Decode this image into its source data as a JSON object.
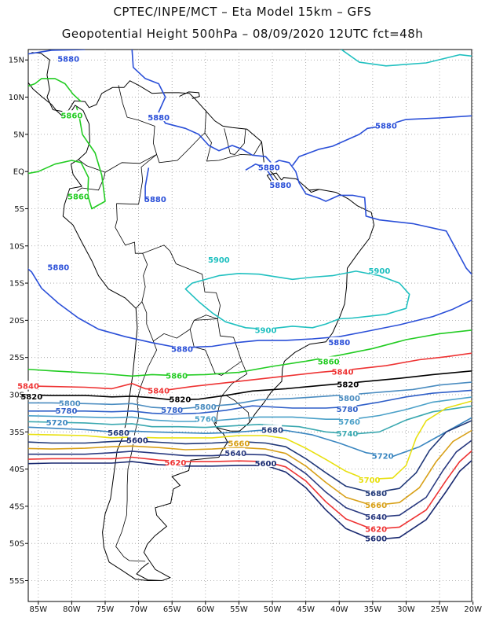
{
  "header": {
    "line1": "CPTEC/INPE/MCT –  Eta Model 15km – GFS",
    "line2": "Geopotential Height 500hPa – 08/09/2020 12UTC fct=48h"
  },
  "map": {
    "lon_labels": [
      "85W",
      "80W",
      "75W",
      "70W",
      "65W",
      "60W",
      "55W",
      "50W",
      "45W",
      "40W",
      "35W",
      "30W",
      "25W",
      "20W"
    ],
    "lat_labels": [
      "15N",
      "10N",
      "5N",
      "EQ",
      "5S",
      "10S",
      "15S",
      "20S",
      "25S",
      "30S",
      "35S",
      "40S",
      "45S",
      "50S",
      "55S"
    ],
    "colors": {
      "5900": "#20c0c0",
      "5880": "#2a4fd8",
      "5860": "#22cc22",
      "5840": "#ee3333",
      "5820": "#000000",
      "5800": "#4a8cc0",
      "5780": "#2f5fc8",
      "5760": "#4aa0c8",
      "5740": "#3aa8b0",
      "5720": "#3a86c0",
      "5700": "#e8e010",
      "5680": "#203878",
      "5660": "#d8a018",
      "5640": "#2a3a80",
      "5620": "#ee3333",
      "5600": "#1a2a70",
      "coast": "#000000"
    },
    "contour_labels": [
      {
        "text": "5880",
        "lev": "5880",
        "lon": -80.5,
        "lat": 15.2
      },
      {
        "text": "5860",
        "lev": "5860",
        "lon": -80,
        "lat": 7.6
      },
      {
        "text": "5860",
        "lev": "5860",
        "lon": -79,
        "lat": -3.3
      },
      {
        "text": "5880",
        "lev": "5880",
        "lon": -67,
        "lat": 7.3
      },
      {
        "text": "5880",
        "lev": "5880",
        "lon": -33,
        "lat": 6.2
      },
      {
        "text": "5880",
        "lev": "5880",
        "lon": -50.5,
        "lat": 0.6
      },
      {
        "text": "5880",
        "lev": "5880",
        "lon": -48.8,
        "lat": -1.8
      },
      {
        "text": "5880",
        "lev": "5880",
        "lon": -67.5,
        "lat": -3.7
      },
      {
        "text": "5880",
        "lev": "5880",
        "lon": -82,
        "lat": -12.8
      },
      {
        "text": "5900",
        "lev": "5900",
        "lon": -58,
        "lat": -11.8
      },
      {
        "text": "5900",
        "lev": "5900",
        "lon": -34,
        "lat": -13.3
      },
      {
        "text": "5900",
        "lev": "5900",
        "lon": -51,
        "lat": -21.3
      },
      {
        "text": "5880",
        "lev": "5880",
        "lon": -63.5,
        "lat": -23.8
      },
      {
        "text": "5880",
        "lev": "5880",
        "lon": -40,
        "lat": -22.9
      },
      {
        "text": "5860",
        "lev": "5860",
        "lon": -64.3,
        "lat": -27.4
      },
      {
        "text": "5860",
        "lev": "5860",
        "lon": -41.6,
        "lat": -25.5
      },
      {
        "text": "5840",
        "lev": "5840",
        "lon": -39.5,
        "lat": -26.9
      },
      {
        "text": "5840",
        "lev": "5840",
        "lon": -67,
        "lat": -29.4
      },
      {
        "text": "5820",
        "lev": "5820",
        "lon": -38.7,
        "lat": -28.6
      },
      {
        "text": "5820",
        "lev": "5820",
        "lon": -63.8,
        "lat": -30.6
      },
      {
        "text": "5820",
        "lev": "5820",
        "lon": -86,
        "lat": -30.2
      },
      {
        "text": "5840",
        "lev": "5840",
        "lon": -86.5,
        "lat": -28.8
      },
      {
        "text": "5800",
        "lev": "5800",
        "lon": -80.3,
        "lat": -31.1
      },
      {
        "text": "5800",
        "lev": "5800",
        "lon": -60,
        "lat": -31.6
      },
      {
        "text": "5800",
        "lev": "5800",
        "lon": -38.5,
        "lat": -30.4
      },
      {
        "text": "5780",
        "lev": "5780",
        "lon": -80.8,
        "lat": -32.1
      },
      {
        "text": "5780",
        "lev": "5780",
        "lon": -65,
        "lat": -32.0
      },
      {
        "text": "5780",
        "lev": "5780",
        "lon": -38.8,
        "lat": -31.9
      },
      {
        "text": "5760",
        "lev": "5760",
        "lon": -60,
        "lat": -33.2
      },
      {
        "text": "5760",
        "lev": "5760",
        "lon": -38.5,
        "lat": -33.6
      },
      {
        "text": "5740",
        "lev": "5740",
        "lon": -38.8,
        "lat": -35.2
      },
      {
        "text": "5720",
        "lev": "5720",
        "lon": -82.2,
        "lat": -33.7
      },
      {
        "text": "5720",
        "lev": "5720",
        "lon": -33.5,
        "lat": -38.2
      },
      {
        "text": "5700",
        "lev": "5700",
        "lon": -35.5,
        "lat": -41.4
      },
      {
        "text": "5680",
        "lev": "5680",
        "lon": -73,
        "lat": -35.1
      },
      {
        "text": "5680",
        "lev": "5680",
        "lon": -50,
        "lat": -34.7
      },
      {
        "text": "5680",
        "lev": "5680",
        "lon": -34.5,
        "lat": -43.2
      },
      {
        "text": "5660",
        "lev": "5660",
        "lon": -55,
        "lat": -36.5
      },
      {
        "text": "5660",
        "lev": "5660",
        "lon": -34.5,
        "lat": -44.8
      },
      {
        "text": "5640",
        "lev": "5640",
        "lon": -55.5,
        "lat": -37.8
      },
      {
        "text": "5640",
        "lev": "5640",
        "lon": -34.5,
        "lat": -46.4
      },
      {
        "text": "5620",
        "lev": "5620",
        "lon": -64.5,
        "lat": -39.1
      },
      {
        "text": "5620",
        "lev": "5620",
        "lon": -34.5,
        "lat": -48.0
      },
      {
        "text": "5600",
        "lev": "5600",
        "lon": -70.2,
        "lat": -36.1
      },
      {
        "text": "5600",
        "lev": "5600",
        "lon": -51,
        "lat": -39.2
      },
      {
        "text": "5600",
        "lev": "5600",
        "lon": -34.5,
        "lat": -49.3
      }
    ]
  }
}
